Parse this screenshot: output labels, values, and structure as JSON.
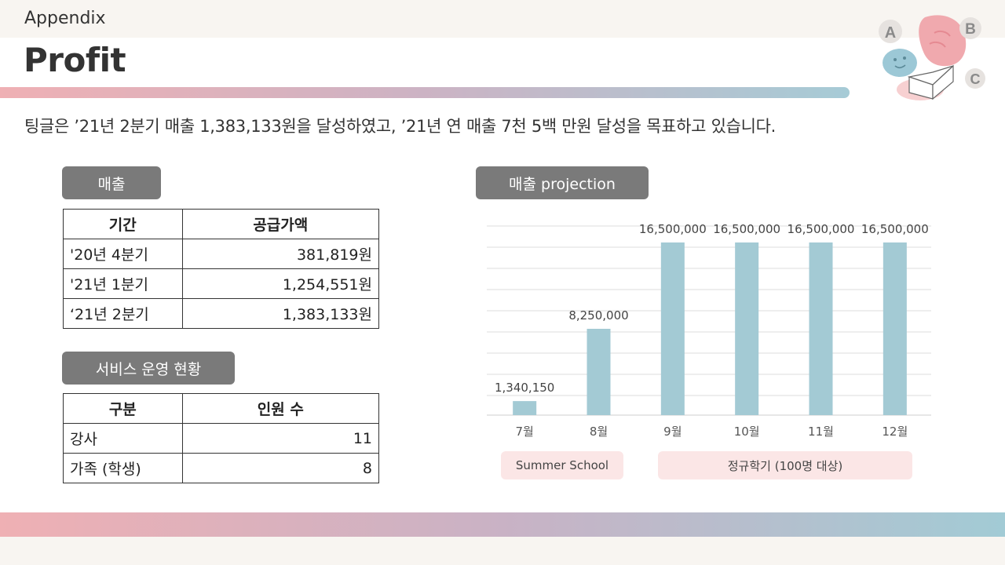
{
  "header": {
    "appendix": "Appendix",
    "title": "Profit"
  },
  "summary": "팅글은 ’21년 2분기 매출 1,383,133원을 달성하였고, ’21년 연 매출 7천 5백 만원 달성을 목표하고 있습니다.",
  "sales": {
    "label": "매출",
    "headers": [
      "기간",
      "공급가액"
    ],
    "rows": [
      {
        "period": "'20년 4분기",
        "amount": "381,819원"
      },
      {
        "period": "'21년 1분기",
        "amount": "1,254,551원"
      },
      {
        "period": "‘21년 2분기",
        "amount": "1,383,133원"
      }
    ]
  },
  "service": {
    "label": "서비스 운영 현황",
    "headers": [
      "구분",
      "인원 수"
    ],
    "rows": [
      {
        "type": "강사",
        "count": "11"
      },
      {
        "type": "가족 (학생)",
        "count": "8"
      }
    ]
  },
  "projection": {
    "label": "매출 projection",
    "segments": {
      "summer": "Summer School",
      "regular": "정규학기 (100명 대상)"
    }
  },
  "chart_data": {
    "type": "bar",
    "title": "매출 projection",
    "categories": [
      "7월",
      "8월",
      "9월",
      "10월",
      "11월",
      "12월"
    ],
    "values": [
      1340150,
      8250000,
      16500000,
      16500000,
      16500000,
      16500000
    ],
    "labels": [
      "1,340,150",
      "8,250,000",
      "16,500,000",
      "16,500,000",
      "16,500,000",
      "16,500,000"
    ],
    "ylim": [
      0,
      18000000
    ],
    "grid": true,
    "color": "#a3cad4"
  },
  "logo": {
    "letters": [
      "A",
      "B",
      "C"
    ]
  },
  "colors": {
    "pill": "#7a7a7a",
    "bar": "#a3cad4",
    "season_bg": "#fbe6e6",
    "gradient_start": "#efb0b4",
    "gradient_end": "#a6cbd6"
  }
}
